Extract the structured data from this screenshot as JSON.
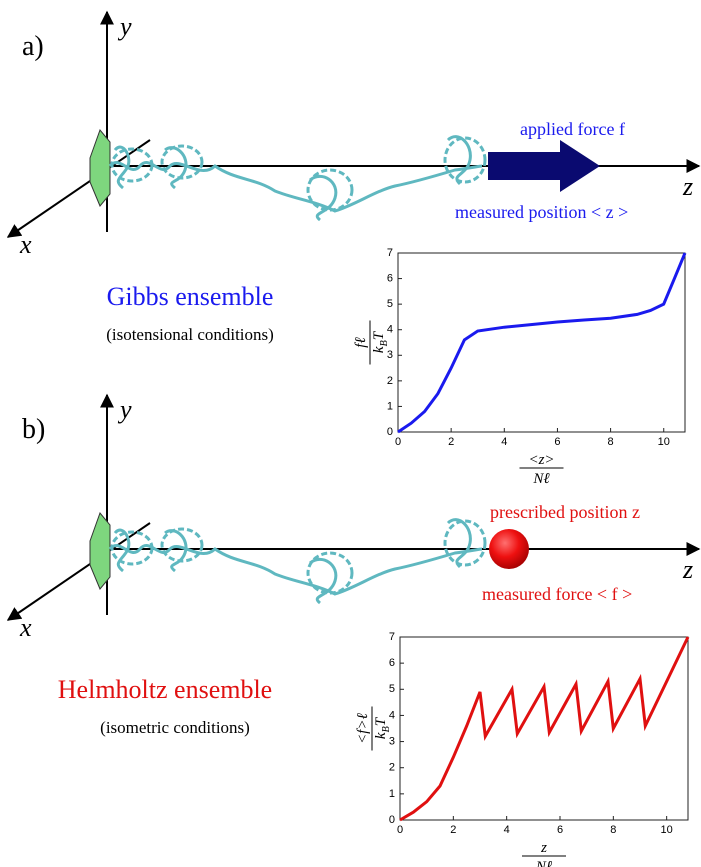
{
  "panel_a": {
    "label": "a)",
    "y_axis": "y",
    "x_axis": "x",
    "z_axis": "z",
    "force_label": "applied force f",
    "position_label": "measured position < z >",
    "ensemble": "Gibbs ensemble",
    "conditions": "(isotensional conditions)"
  },
  "panel_b": {
    "label": "b)",
    "y_axis": "y",
    "x_axis": "x",
    "z_axis": "z",
    "position_label": "prescribed position z",
    "force_label": "measured force < f >",
    "ensemble": "Helmholtz ensemble",
    "conditions": "(isometric conditions)"
  },
  "chart_data": [
    {
      "type": "line",
      "color": "#1a1aee",
      "x": [
        0,
        0.5,
        1,
        1.5,
        2,
        2.5,
        3,
        4,
        5,
        6,
        7,
        8,
        9,
        9.5,
        10,
        10.4,
        10.8
      ],
      "values": [
        0,
        0.35,
        0.8,
        1.5,
        2.5,
        3.6,
        3.95,
        4.1,
        4.2,
        4.3,
        4.38,
        4.45,
        4.6,
        4.75,
        5.0,
        6.0,
        7.0
      ],
      "xlim": [
        0,
        10.8
      ],
      "ylim": [
        0,
        7
      ],
      "xticks": [
        0,
        2,
        4,
        6,
        8,
        10
      ],
      "yticks": [
        0,
        1,
        2,
        3,
        4,
        5,
        6,
        7
      ],
      "x_label": {
        "numerator": "<z>",
        "denominator": "Nℓ"
      },
      "y_label": {
        "numerator": "fℓ",
        "denominator": {
          "base": "k",
          "sub": "B",
          "rest": "T"
        }
      }
    },
    {
      "type": "line",
      "color": "#e01010",
      "x": [
        0,
        0.5,
        1,
        1.5,
        2,
        2.5,
        3.0,
        3.2,
        4.2,
        4.4,
        5.4,
        5.6,
        6.6,
        6.8,
        7.8,
        8.0,
        9.0,
        9.2,
        10.8
      ],
      "values": [
        0,
        0.3,
        0.7,
        1.3,
        2.4,
        3.6,
        4.9,
        3.2,
        5.0,
        3.3,
        5.1,
        3.35,
        5.2,
        3.4,
        5.3,
        3.5,
        5.4,
        3.6,
        7.0
      ],
      "xlim": [
        0,
        10.8
      ],
      "ylim": [
        0,
        7
      ],
      "xticks": [
        0,
        2,
        4,
        6,
        8,
        10
      ],
      "yticks": [
        0,
        1,
        2,
        3,
        4,
        5,
        6,
        7
      ],
      "x_label": {
        "numerator": "z",
        "denominator": "Nℓ"
      },
      "y_label": {
        "numerator": "<f>ℓ",
        "denominator": {
          "base": "k",
          "sub": "B",
          "rest": "T"
        }
      }
    }
  ]
}
